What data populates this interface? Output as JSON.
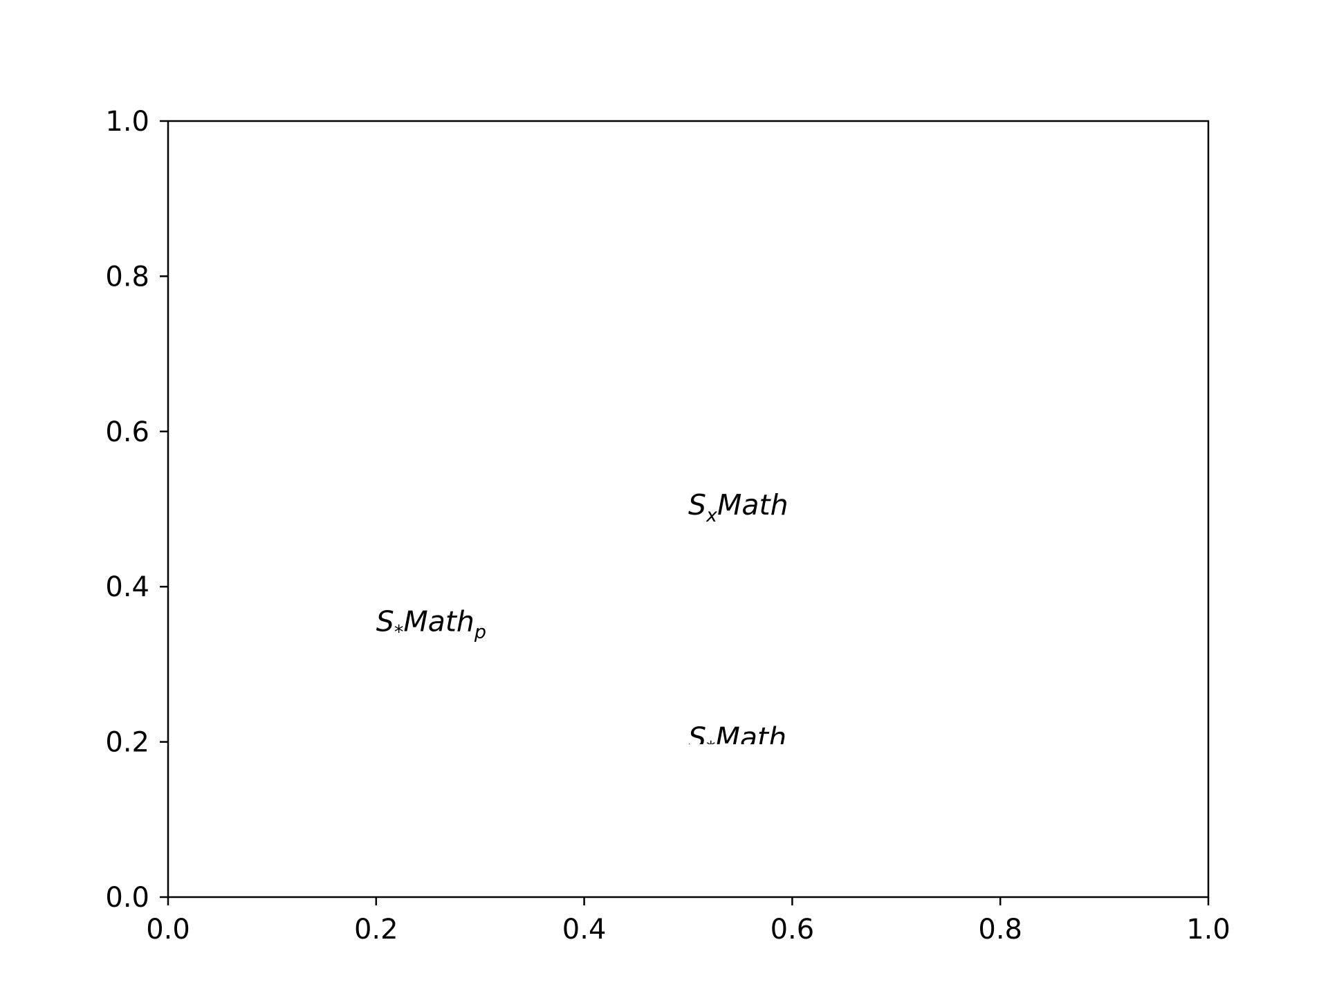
{
  "chart_data": {
    "type": "scatter",
    "title": "",
    "xlabel": "",
    "ylabel": "",
    "xlim": [
      0.0,
      1.0
    ],
    "ylim": [
      0.0,
      1.0
    ],
    "grid": false,
    "x_ticks": [
      "0.0",
      "0.2",
      "0.4",
      "0.6",
      "0.8",
      "1.0"
    ],
    "y_ticks": [
      "0.0",
      "0.2",
      "0.4",
      "0.6",
      "0.8",
      "1.0"
    ],
    "annotations": [
      {
        "x": 0.5,
        "y": 0.5,
        "base": "S",
        "sub1": "x",
        "main": "Math",
        "sub2": ""
      },
      {
        "x": 0.2,
        "y": 0.35,
        "base": "S",
        "sub1": "*",
        "main": "Math",
        "sub2": "p"
      },
      {
        "x": 0.5,
        "y": 0.2,
        "base": "S",
        "sub1": "*",
        "main": "Math",
        "sub2": "",
        "clip_below_baseline": true
      }
    ],
    "colors": {
      "axes": "#000000",
      "background": "#ffffff"
    }
  }
}
